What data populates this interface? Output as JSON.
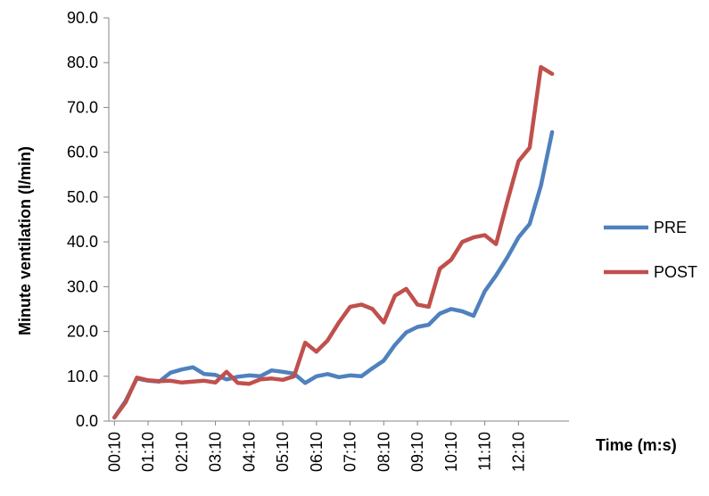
{
  "chart_data": {
    "type": "line",
    "ylabel": "Minute ventilation (l/min)",
    "xlabel": "Time (m:s)",
    "ylim": [
      0,
      90
    ],
    "y_ticks": [
      "0.0",
      "10.0",
      "20.0",
      "30.0",
      "40.0",
      "50.0",
      "60.0",
      "70.0",
      "80.0",
      "90.0"
    ],
    "x_ticks": [
      "00:10",
      "01:10",
      "02:10",
      "03:10",
      "04:10",
      "05:10",
      "06:10",
      "07:10",
      "08:10",
      "09:10",
      "10:10",
      "11:10",
      "12:10"
    ],
    "grid": false,
    "legend_position": "right",
    "series": [
      {
        "name": "PRE",
        "color": "#4F81BD",
        "x": [
          0.167,
          0.5,
          0.833,
          1.167,
          1.5,
          1.833,
          2.167,
          2.5,
          2.833,
          3.167,
          3.5,
          3.833,
          4.167,
          4.5,
          4.833,
          5.167,
          5.5,
          5.833,
          6.167,
          6.5,
          6.833,
          7.167,
          7.5,
          7.833,
          8.167,
          8.5,
          8.833,
          9.167,
          9.5,
          9.833,
          10.167,
          10.5,
          10.833,
          11.167,
          11.5,
          11.833,
          12.167,
          12.5,
          12.833,
          13.167
        ],
        "values": [
          0.8,
          4.5,
          9.5,
          9.0,
          8.8,
          10.8,
          11.5,
          12.0,
          10.5,
          10.3,
          9.3,
          9.9,
          10.2,
          10.0,
          11.3,
          11.0,
          10.6,
          8.5,
          10.0,
          10.5,
          9.8,
          10.2,
          10.0,
          11.8,
          13.5,
          17.0,
          19.8,
          21.0,
          21.5,
          24.0,
          25.0,
          24.5,
          23.5,
          29.0,
          32.5,
          36.5,
          41.0,
          44.0,
          52.5,
          64.5
        ]
      },
      {
        "name": "POST",
        "color": "#C0504D",
        "x": [
          0.167,
          0.5,
          0.833,
          1.167,
          1.5,
          1.833,
          2.167,
          2.5,
          2.833,
          3.167,
          3.5,
          3.833,
          4.167,
          4.5,
          4.833,
          5.167,
          5.5,
          5.833,
          6.167,
          6.5,
          6.833,
          7.167,
          7.5,
          7.833,
          8.167,
          8.5,
          8.833,
          9.167,
          9.5,
          9.833,
          10.167,
          10.5,
          10.833,
          11.167,
          11.5,
          11.833,
          12.167,
          12.5,
          12.833,
          13.167
        ],
        "values": [
          0.8,
          4.2,
          9.7,
          9.1,
          8.9,
          9.0,
          8.6,
          8.8,
          9.0,
          8.6,
          11.0,
          8.5,
          8.3,
          9.3,
          9.5,
          9.2,
          10.0,
          17.5,
          15.5,
          18.0,
          22.0,
          25.5,
          26.0,
          25.0,
          22.0,
          28.0,
          29.5,
          26.0,
          25.5,
          34.0,
          36.0,
          40.0,
          41.0,
          41.5,
          39.5,
          49.0,
          58.0,
          61.0,
          79.0,
          77.5
        ]
      }
    ]
  }
}
